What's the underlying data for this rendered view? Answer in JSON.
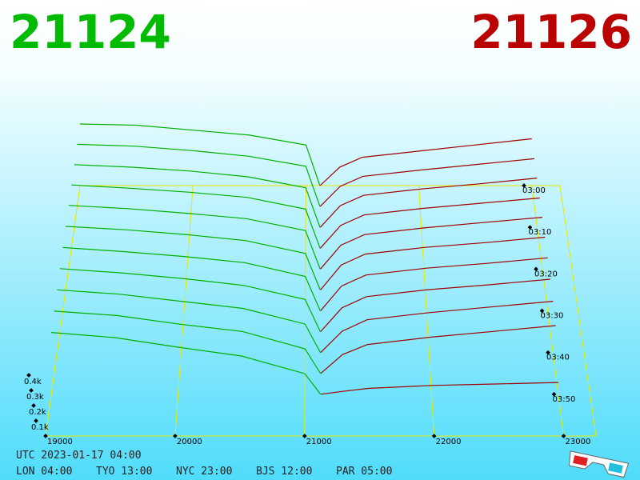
{
  "header": {
    "bid": 21124,
    "ask": 21126
  },
  "chart_data": {
    "type": "depth3d",
    "bid_color": "#00b000",
    "ask_color": "#a00000",
    "grid_color": "#e8e800",
    "xlim": [
      19000,
      23250
    ],
    "xticks": [
      19000,
      20000,
      21000,
      22000,
      23000
    ],
    "ylim": [
      0,
      500
    ],
    "yticks": [
      {
        "value": 100,
        "label": "0.1k"
      },
      {
        "value": 200,
        "label": "0.2k"
      },
      {
        "value": 300,
        "label": "0.3k"
      },
      {
        "value": 400,
        "label": "0.4k"
      }
    ],
    "tlim": [
      0,
      60
    ],
    "tticks": [
      {
        "value": 0,
        "label": "03:00"
      },
      {
        "value": 10,
        "label": "03:10"
      },
      {
        "value": 20,
        "label": "03:20"
      },
      {
        "value": 30,
        "label": "03:30"
      },
      {
        "value": 40,
        "label": "03:40"
      },
      {
        "value": 50,
        "label": "03:50"
      }
    ],
    "bid_prices": [
      19000,
      19500,
      20000,
      20500,
      21000,
      21124
    ],
    "ask_prices": [
      21126,
      21300,
      21500,
      22000,
      22500,
      23000
    ],
    "snapshots": [
      {
        "minute": 0,
        "bids": [
          500,
          490,
          450,
          410,
          330,
          0
        ],
        "asks": [
          0,
          150,
          230,
          280,
          330,
          380
        ]
      },
      {
        "minute": 5,
        "bids": [
          495,
          480,
          445,
          400,
          320,
          0
        ],
        "asks": [
          0,
          160,
          240,
          290,
          335,
          380
        ]
      },
      {
        "minute": 10,
        "bids": [
          490,
          470,
          440,
          395,
          310,
          0
        ],
        "asks": [
          0,
          170,
          250,
          300,
          340,
          385
        ]
      },
      {
        "minute": 15,
        "bids": [
          485,
          460,
          430,
          390,
          300,
          0
        ],
        "asks": [
          0,
          175,
          255,
          305,
          345,
          385
        ]
      },
      {
        "minute": 20,
        "bids": [
          480,
          455,
          420,
          380,
          290,
          0
        ],
        "asks": [
          0,
          180,
          260,
          310,
          350,
          390
        ]
      },
      {
        "minute": 25,
        "bids": [
          470,
          445,
          410,
          365,
          270,
          0
        ],
        "asks": [
          0,
          185,
          265,
          315,
          350,
          390
        ]
      },
      {
        "minute": 30,
        "bids": [
          460,
          430,
          395,
          350,
          250,
          0
        ],
        "asks": [
          0,
          180,
          260,
          310,
          345,
          385
        ]
      },
      {
        "minute": 35,
        "bids": [
          450,
          420,
          380,
          330,
          230,
          0
        ],
        "asks": [
          0,
          170,
          250,
          300,
          335,
          375
        ]
      },
      {
        "minute": 40,
        "bids": [
          440,
          410,
          360,
          310,
          200,
          0
        ],
        "asks": [
          0,
          150,
          230,
          280,
          320,
          360
        ]
      },
      {
        "minute": 45,
        "bids": [
          430,
          400,
          340,
          290,
          170,
          0
        ],
        "asks": [
          0,
          130,
          200,
          250,
          290,
          330
        ]
      },
      {
        "minute": 50,
        "bids": [
          420,
          385,
          320,
          260,
          140,
          0
        ],
        "asks": [
          0,
          20,
          40,
          60,
          70,
          80
        ]
      }
    ]
  },
  "footer": {
    "utc": "UTC 2023-01-17 04:00",
    "cities": [
      "LON 04:00",
      "TYO 13:00",
      "NYC 23:00",
      "BJS 12:00",
      "PAR 05:00"
    ]
  }
}
